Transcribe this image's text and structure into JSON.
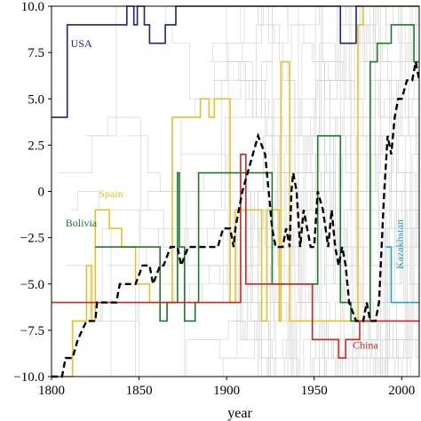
{
  "chart_data": {
    "type": "line",
    "title": "",
    "xlabel": "year",
    "ylabel": "",
    "xlim": [
      1800,
      2010
    ],
    "ylim": [
      -10,
      10
    ],
    "x_ticks": [
      1800,
      1850,
      1900,
      1950,
      2000
    ],
    "x_tick_labels": [
      "1800",
      "1850",
      "1900",
      "1950",
      "2000"
    ],
    "y_ticks": [
      -10,
      -7.5,
      -5,
      -2.5,
      0,
      2.5,
      5,
      7.5,
      10
    ],
    "y_tick_labels": [
      "−10.0",
      "−7.5",
      "−5.0",
      "−2.5",
      "0",
      "2.5",
      "5.0",
      "7.5",
      "10.0"
    ],
    "grid": false,
    "legend": "none (series labelled directly on the plot)",
    "background_series": {
      "description_color": "#cccccc",
      "count": 40
    },
    "series": [
      {
        "name": "USA",
        "color": "#1a237e",
        "style": "solid",
        "points": [
          [
            1800,
            4
          ],
          [
            1809,
            4
          ],
          [
            1809,
            9
          ],
          [
            1843,
            9
          ],
          [
            1843,
            10
          ],
          [
            1847,
            10
          ],
          [
            1847,
            9
          ],
          [
            1849,
            9
          ],
          [
            1849,
            10
          ],
          [
            1853,
            10
          ],
          [
            1853,
            9
          ],
          [
            1856,
            9
          ],
          [
            1856,
            8
          ],
          [
            1865,
            8
          ],
          [
            1865,
            9
          ],
          [
            1871,
            9
          ],
          [
            1871,
            10
          ],
          [
            1965,
            10
          ],
          [
            1965,
            8
          ],
          [
            1974,
            8
          ],
          [
            1974,
            10
          ],
          [
            2010,
            10
          ]
        ]
      },
      {
        "name": "Spain",
        "color": "#e6c02a",
        "style": "solid",
        "points": [
          [
            1800,
            -10
          ],
          [
            1812,
            -10
          ],
          [
            1812,
            -7
          ],
          [
            1820,
            -7
          ],
          [
            1820,
            -4
          ],
          [
            1823,
            -4
          ],
          [
            1823,
            -7
          ],
          [
            1825,
            -7
          ],
          [
            1825,
            -1
          ],
          [
            1833,
            -1
          ],
          [
            1833,
            -2
          ],
          [
            1840,
            -2
          ],
          [
            1840,
            -3
          ],
          [
            1848,
            -3
          ],
          [
            1848,
            -5
          ],
          [
            1856,
            -5
          ],
          [
            1856,
            -6
          ],
          [
            1869,
            -6
          ],
          [
            1869,
            4
          ],
          [
            1880,
            4
          ],
          [
            1880,
            4
          ],
          [
            1885,
            4
          ],
          [
            1885,
            5
          ],
          [
            1890,
            5
          ],
          [
            1890,
            4
          ],
          [
            1893,
            4
          ],
          [
            1893,
            5
          ],
          [
            1902,
            5
          ],
          [
            1902,
            4
          ],
          [
            1902,
            -6
          ],
          [
            1905,
            -6
          ],
          [
            1905,
            -1
          ],
          [
            1920,
            -1
          ],
          [
            1920,
            -7
          ],
          [
            1923,
            -7
          ],
          [
            1923,
            -1
          ],
          [
            1930,
            -1
          ],
          [
            1930,
            -7
          ],
          [
            1931,
            -7
          ],
          [
            1931,
            7
          ],
          [
            1936,
            7
          ],
          [
            1936,
            -7
          ],
          [
            1975,
            -7
          ],
          [
            1975,
            9
          ],
          [
            1978,
            9
          ],
          [
            1978,
            10
          ],
          [
            2010,
            10
          ]
        ]
      },
      {
        "name": "Bolivia",
        "color": "#1b7a2a",
        "style": "solid",
        "points": [
          [
            1825,
            -3
          ],
          [
            1862,
            -3
          ],
          [
            1862,
            -7
          ],
          [
            1866,
            -7
          ],
          [
            1866,
            -6
          ],
          [
            1872,
            -6
          ],
          [
            1872,
            1
          ],
          [
            1873,
            1
          ],
          [
            1873,
            -3
          ],
          [
            1876,
            -3
          ],
          [
            1876,
            -7
          ],
          [
            1882,
            -7
          ],
          [
            1882,
            -6
          ],
          [
            1884,
            -6
          ],
          [
            1884,
            1
          ],
          [
            1926,
            1
          ],
          [
            1926,
            -5
          ],
          [
            1952,
            -5
          ],
          [
            1952,
            3
          ],
          [
            1965,
            3
          ],
          [
            1965,
            -6
          ],
          [
            1971,
            -6
          ],
          [
            1971,
            -7
          ],
          [
            1982,
            -7
          ],
          [
            1982,
            7
          ],
          [
            1986,
            7
          ],
          [
            1986,
            8
          ],
          [
            1994,
            8
          ],
          [
            1994,
            9
          ],
          [
            2007,
            9
          ],
          [
            2007,
            7
          ],
          [
            2010,
            7
          ]
        ]
      },
      {
        "name": "China",
        "color": "#c62828",
        "style": "solid",
        "points": [
          [
            1800,
            -6
          ],
          [
            1908,
            -6
          ],
          [
            1908,
            2
          ],
          [
            1911,
            2
          ],
          [
            1911,
            -5
          ],
          [
            1949,
            -5
          ],
          [
            1949,
            -8
          ],
          [
            1964,
            -8
          ],
          [
            1964,
            -9
          ],
          [
            1968,
            -9
          ],
          [
            1968,
            -8
          ],
          [
            1976,
            -8
          ],
          [
            1976,
            -7
          ],
          [
            2010,
            -7
          ]
        ]
      },
      {
        "name": "Kazakhstan",
        "color": "#29a3c8",
        "style": "solid",
        "points": [
          [
            1991,
            -3
          ],
          [
            1994,
            -3
          ],
          [
            1994,
            -6
          ],
          [
            2010,
            -6
          ]
        ]
      },
      {
        "name": "",
        "color": "#000000",
        "style": "dashed",
        "points": [
          [
            1800,
            -10
          ],
          [
            1806,
            -10
          ],
          [
            1808,
            -9
          ],
          [
            1812,
            -9
          ],
          [
            1815,
            -8
          ],
          [
            1820,
            -7
          ],
          [
            1825,
            -7
          ],
          [
            1826,
            -6
          ],
          [
            1835,
            -6
          ],
          [
            1837,
            -6
          ],
          [
            1839,
            -5
          ],
          [
            1846,
            -5
          ],
          [
            1848,
            -5
          ],
          [
            1852,
            -4
          ],
          [
            1856,
            -4
          ],
          [
            1858,
            -5
          ],
          [
            1862,
            -4
          ],
          [
            1864,
            -4
          ],
          [
            1868,
            -3
          ],
          [
            1872,
            -3
          ],
          [
            1874,
            -4
          ],
          [
            1878,
            -3
          ],
          [
            1895,
            -3
          ],
          [
            1898,
            -2
          ],
          [
            1902,
            -2
          ],
          [
            1904,
            -3
          ],
          [
            1905,
            -2
          ],
          [
            1907,
            -1
          ],
          [
            1909,
            0
          ],
          [
            1912,
            1
          ],
          [
            1915,
            2
          ],
          [
            1918,
            3
          ],
          [
            1922,
            2
          ],
          [
            1924,
            0
          ],
          [
            1926,
            -2
          ],
          [
            1928,
            -3
          ],
          [
            1932,
            -3
          ],
          [
            1934,
            -2
          ],
          [
            1936,
            -3
          ],
          [
            1937,
            0
          ],
          [
            1938,
            1
          ],
          [
            1940,
            0
          ],
          [
            1942,
            -3
          ],
          [
            1944,
            -1
          ],
          [
            1946,
            -2
          ],
          [
            1948,
            -3
          ],
          [
            1950,
            -3
          ],
          [
            1952,
            0
          ],
          [
            1955,
            -1
          ],
          [
            1958,
            -3
          ],
          [
            1960,
            -1
          ],
          [
            1962,
            -3
          ],
          [
            1964,
            -4
          ],
          [
            1966,
            -3
          ],
          [
            1968,
            -4
          ],
          [
            1970,
            -6
          ],
          [
            1974,
            -7
          ],
          [
            1978,
            -7
          ],
          [
            1980,
            -6
          ],
          [
            1982,
            -7
          ],
          [
            1985,
            -7
          ],
          [
            1987,
            -6
          ],
          [
            1990,
            0
          ],
          [
            1992,
            3
          ],
          [
            1994,
            2
          ],
          [
            1996,
            4
          ],
          [
            1998,
            5
          ],
          [
            2000,
            5
          ],
          [
            2003,
            6
          ],
          [
            2006,
            6
          ],
          [
            2008,
            7
          ],
          [
            2010,
            6
          ]
        ]
      }
    ],
    "annotations": [
      {
        "text": "USA",
        "x": 1811,
        "y": 7.8,
        "color": "#1a237e",
        "rotate": 0
      },
      {
        "text": "Spain",
        "x": 1827,
        "y": -0.3,
        "color": "#e6c02a",
        "rotate": 0
      },
      {
        "text": "Bolivia",
        "x": 1808,
        "y": -1.9,
        "color": "#1b7a2a",
        "rotate": 0
      },
      {
        "text": "China",
        "x": 1972,
        "y": -8.5,
        "color": "#c62828",
        "rotate": 0
      },
      {
        "text": "Kazakhstan",
        "x": 2001,
        "y": -4.2,
        "color": "#29a3c8",
        "rotate": -90
      }
    ]
  }
}
